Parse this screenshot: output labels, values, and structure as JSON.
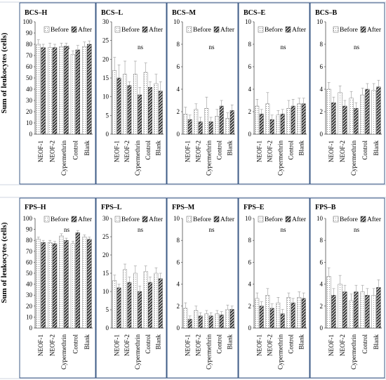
{
  "figure": {
    "ylabel": "Sum of leukocytes (cells)",
    "legend": {
      "before": "Before",
      "after": "After",
      "placement": "top-right"
    },
    "significance": "ns",
    "colors": {
      "frame": "#2a4a7a",
      "bar_before": "#ffffff",
      "bar_after": "#333333",
      "stroke": "#222222",
      "error_bar": "#999999"
    }
  },
  "chart_data": [
    {
      "type": "bar",
      "title": "BCS–H",
      "ylim": [
        0,
        100
      ],
      "yticks": [
        0,
        10,
        20,
        30,
        40,
        50,
        60,
        70,
        80,
        90,
        100
      ],
      "grid": false,
      "categories": [
        "NEOF-1",
        "NEOF-2",
        "Cypermethrin",
        "Control",
        "Blank"
      ],
      "series": [
        {
          "name": "Before",
          "values": [
            80,
            77,
            78,
            71,
            78
          ],
          "errors": [
            4,
            4,
            3,
            3,
            4
          ]
        },
        {
          "name": "After",
          "values": [
            77,
            77,
            78,
            75,
            80
          ],
          "errors": [
            3,
            3,
            3,
            4,
            3
          ]
        }
      ]
    },
    {
      "type": "bar",
      "title": "BCS–L",
      "ylim": [
        0,
        30
      ],
      "yticks": [
        0,
        5,
        10,
        15,
        20,
        25,
        30
      ],
      "grid": false,
      "categories": [
        "NEOF-1",
        "NEOF-2",
        "Cypermethrin",
        "Control",
        "Blank"
      ],
      "series": [
        {
          "name": "Before",
          "values": [
            17,
            16,
            16,
            16.5,
            13.5
          ],
          "errors": [
            3.5,
            3.5,
            3.5,
            2.5,
            2.5
          ]
        },
        {
          "name": "After",
          "values": [
            15,
            13,
            10.5,
            12.5,
            11.5
          ],
          "errors": [
            3.5,
            1,
            2,
            1.5,
            2.5
          ]
        }
      ]
    },
    {
      "type": "bar",
      "title": "BCS–M",
      "ylim": [
        0,
        10
      ],
      "yticks": [
        0,
        2,
        4,
        6,
        8,
        10
      ],
      "grid": false,
      "categories": [
        "NEOF-1",
        "NEOF-2",
        "Cypermethrin",
        "Control",
        "Blank"
      ],
      "series": [
        {
          "name": "Before",
          "values": [
            1.8,
            2.2,
            2.3,
            1.6,
            1.4
          ],
          "errors": [
            0.6,
            0.5,
            1,
            0.6,
            0.5
          ]
        },
        {
          "name": "After",
          "values": [
            1.3,
            1.1,
            1.1,
            2.5,
            2.1
          ],
          "errors": [
            0.4,
            0.4,
            0.4,
            0.5,
            0.5
          ]
        }
      ]
    },
    {
      "type": "bar",
      "title": "BCS–E",
      "ylim": [
        0,
        10
      ],
      "yticks": [
        0,
        2,
        4,
        6,
        8,
        10
      ],
      "grid": false,
      "categories": [
        "NEOF-1",
        "NEOF-2",
        "Cypermethrin",
        "Control",
        "Blank"
      ],
      "series": [
        {
          "name": "Before",
          "values": [
            2.5,
            2.7,
            1.7,
            2.3,
            2.7
          ],
          "errors": [
            0.6,
            1,
            0.4,
            0.7,
            0.5
          ]
        },
        {
          "name": "After",
          "values": [
            1.8,
            1.3,
            1.8,
            2.5,
            2.7
          ],
          "errors": [
            0.4,
            0.4,
            0.4,
            0.6,
            0.5
          ]
        }
      ]
    },
    {
      "type": "bar",
      "title": "BCS–B",
      "ylim": [
        0,
        10
      ],
      "yticks": [
        0,
        2,
        4,
        6,
        8,
        10
      ],
      "grid": false,
      "categories": [
        "NEOF-1",
        "NEOF-2",
        "Cypermethrin",
        "Control",
        "Blank"
      ],
      "series": [
        {
          "name": "Before",
          "values": [
            4,
            3.7,
            3.2,
            3.5,
            3.9
          ],
          "errors": [
            0.6,
            0.6,
            0.6,
            0.6,
            0.6
          ]
        },
        {
          "name": "After",
          "values": [
            2.8,
            2.5,
            2.3,
            4,
            4.2
          ],
          "errors": [
            0.5,
            0.5,
            0.5,
            0.5,
            0.6
          ]
        }
      ]
    },
    {
      "type": "bar",
      "title": "FPS–H",
      "ylim": [
        0,
        100
      ],
      "yticks": [
        0,
        10,
        20,
        30,
        40,
        50,
        60,
        70,
        80,
        90,
        100
      ],
      "grid": false,
      "categories": [
        "NEOF-1",
        "NEOF-2",
        "Cypermethrin",
        "Control",
        "Blank"
      ],
      "series": [
        {
          "name": "Before",
          "values": [
            81,
            78,
            84,
            77,
            83
          ],
          "errors": [
            2,
            2,
            2,
            2,
            2
          ]
        },
        {
          "name": "After",
          "values": [
            78,
            77,
            80,
            87,
            81
          ],
          "errors": [
            2,
            2,
            2,
            2,
            2
          ]
        }
      ]
    },
    {
      "type": "bar",
      "title": "FPS–L",
      "ylim": [
        0,
        30
      ],
      "yticks": [
        0,
        5,
        10,
        15,
        20,
        25,
        30
      ],
      "grid": false,
      "categories": [
        "NEOF-1",
        "NEOF-2",
        "Cypermethrin",
        "Control",
        "Blank"
      ],
      "series": [
        {
          "name": "Before",
          "values": [
            13,
            16,
            15,
            15.5,
            15
          ],
          "errors": [
            1.5,
            1.5,
            2,
            1.5,
            1.5
          ]
        },
        {
          "name": "After",
          "values": [
            11,
            12.5,
            10,
            12.5,
            13.5
          ],
          "errors": [
            1,
            1.5,
            1.5,
            1.5,
            1.5
          ]
        }
      ]
    },
    {
      "type": "bar",
      "title": "FPS–M",
      "ylim": [
        0,
        10
      ],
      "yticks": [
        0,
        2,
        4,
        6,
        8,
        10
      ],
      "grid": false,
      "categories": [
        "NEOF-1",
        "NEOF-2",
        "Cypermethrin",
        "Control",
        "Blank"
      ],
      "series": [
        {
          "name": "Before",
          "values": [
            1.8,
            1.6,
            1.3,
            1.3,
            1.7
          ],
          "errors": [
            0.5,
            0.4,
            0.3,
            0.3,
            0.4
          ]
        },
        {
          "name": "After",
          "values": [
            0.8,
            1.1,
            1.1,
            1.2,
            1.7
          ],
          "errors": [
            0.3,
            0.3,
            0.3,
            0.3,
            0.3
          ]
        }
      ]
    },
    {
      "type": "bar",
      "title": "FPS–E",
      "ylim": [
        0,
        10
      ],
      "yticks": [
        0,
        2,
        4,
        6,
        8,
        10
      ],
      "grid": false,
      "categories": [
        "NEOF-1",
        "NEOF-2",
        "Cypermethrin",
        "Control",
        "Blank"
      ],
      "series": [
        {
          "name": "Before",
          "values": [
            2.7,
            3,
            2.3,
            2.8,
            2.8
          ],
          "errors": [
            0.5,
            0.6,
            0.5,
            0.4,
            0.5
          ]
        },
        {
          "name": "After",
          "values": [
            2,
            1.8,
            1.3,
            2.3,
            2.7
          ],
          "errors": [
            0.4,
            0.4,
            0.4,
            0.4,
            0.5
          ]
        }
      ]
    },
    {
      "type": "bar",
      "title": "FPS–B",
      "ylim": [
        0,
        10
      ],
      "yticks": [
        0,
        2,
        4,
        6,
        8,
        10
      ],
      "grid": false,
      "categories": [
        "NEOF-1",
        "NEOF-2",
        "Cypermethrin",
        "Control",
        "Blank"
      ],
      "series": [
        {
          "name": "Before",
          "values": [
            4.7,
            4,
            2.5,
            3.3,
            3
          ],
          "errors": [
            0.8,
            0.8,
            0.6,
            0.6,
            0.6
          ]
        },
        {
          "name": "After",
          "values": [
            3,
            3.3,
            3.3,
            3,
            3.7
          ],
          "errors": [
            0.6,
            0.6,
            0.6,
            0.6,
            0.7
          ]
        }
      ]
    }
  ]
}
